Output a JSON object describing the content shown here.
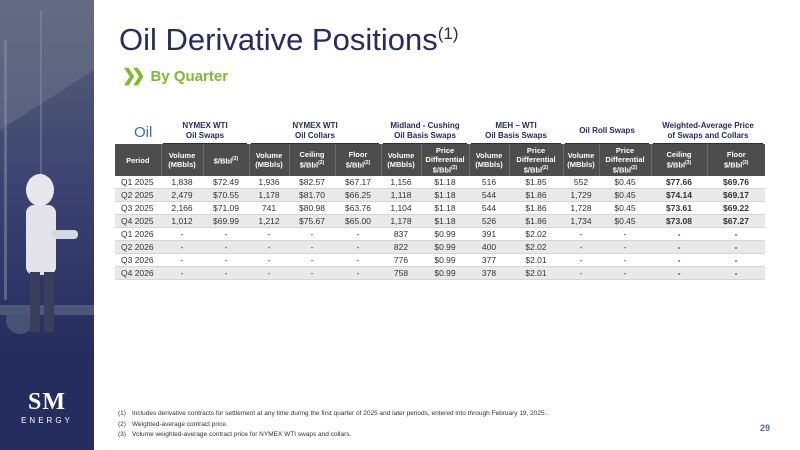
{
  "title": "Oil Derivative Positions",
  "title_sup": "(1)",
  "subtitle": "By Quarter",
  "table_label": "Oil",
  "groups": [
    {
      "line1": "NYMEX WTI",
      "line2": "Oil Swaps"
    },
    {
      "line1": "NYMEX WTI",
      "line2": "Oil Collars"
    },
    {
      "line1": "Midland - Cushing",
      "line2": "Oil Basis Swaps"
    },
    {
      "line1": "MEH – WTI",
      "line2": "Oil Basis Swaps"
    },
    {
      "line1": "Oil Roll Swaps",
      "line2": ""
    },
    {
      "line1": "Weighted-Average Price",
      "line2": "of Swaps and Collars"
    }
  ],
  "columns": [
    {
      "l1": "Period",
      "l2": "",
      "l3": "",
      "sup": ""
    },
    {
      "l1": "Volume",
      "l2": "(MBbls)",
      "l3": "",
      "sup": ""
    },
    {
      "l1": "$/Bbl",
      "l2": "",
      "l3": "",
      "sup": "(2)"
    },
    {
      "l1": "Volume",
      "l2": "(MBbls)",
      "l3": "",
      "sup": ""
    },
    {
      "l1": "Ceiling",
      "l2": "$/Bbl",
      "l3": "",
      "sup": "(2)"
    },
    {
      "l1": "Floor",
      "l2": "$/Bbl",
      "l3": "",
      "sup": "(2)"
    },
    {
      "l1": "Volume",
      "l2": "(MBbls)",
      "l3": "",
      "sup": ""
    },
    {
      "l1": "Price",
      "l2": "Differential",
      "l3": "$/Bbl",
      "sup": "(2)"
    },
    {
      "l1": "Volume",
      "l2": "(MBbls)",
      "l3": "",
      "sup": ""
    },
    {
      "l1": "Price",
      "l2": "Differential",
      "l3": "$/Bbl",
      "sup": "(2)"
    },
    {
      "l1": "Volume",
      "l2": "(MBbls)",
      "l3": "",
      "sup": ""
    },
    {
      "l1": "Price",
      "l2": "Differential",
      "l3": "$/Bbl",
      "sup": "(2)"
    },
    {
      "l1": "Ceiling",
      "l2": "$/Bbl",
      "l3": "",
      "sup": "(3)"
    },
    {
      "l1": "Floor",
      "l2": "$/Bbl",
      "l3": "",
      "sup": "(3)"
    }
  ],
  "rows": [
    [
      "Q1 2025",
      "1,838",
      "$72.49",
      "1,936",
      "$82.57",
      "$67.17",
      "1,156",
      "$1.18",
      "516",
      "$1.85",
      "552",
      "$0.45",
      "$77.66",
      "$69.76"
    ],
    [
      "Q2 2025",
      "2,479",
      "$70.55",
      "1,178",
      "$81.70",
      "$66.25",
      "1,118",
      "$1.18",
      "544",
      "$1.86",
      "1,729",
      "$0.45",
      "$74.14",
      "$69.17"
    ],
    [
      "Q3 2025",
      "2,166",
      "$71.09",
      "741",
      "$80.98",
      "$63.76",
      "1,104",
      "$1.18",
      "544",
      "$1.86",
      "1,728",
      "$0.45",
      "$73.61",
      "$69.22"
    ],
    [
      "Q4 2025",
      "1,012",
      "$69.99",
      "1,212",
      "$75.67",
      "$65.00",
      "1,178",
      "$1.18",
      "526",
      "$1.86",
      "1,734",
      "$0.45",
      "$73.08",
      "$67.27"
    ],
    [
      "Q1 2026",
      "-",
      "-",
      "-",
      "-",
      "-",
      "837",
      "$0.99",
      "391",
      "$2.02",
      "-",
      "-",
      "-",
      "-"
    ],
    [
      "Q2 2026",
      "-",
      "-",
      "-",
      "-",
      "-",
      "822",
      "$0.99",
      "400",
      "$2.02",
      "-",
      "-",
      "-",
      "-"
    ],
    [
      "Q3 2026",
      "-",
      "-",
      "-",
      "-",
      "-",
      "776",
      "$0.99",
      "377",
      "$2.01",
      "-",
      "-",
      "-",
      "-"
    ],
    [
      "Q4 2026",
      "-",
      "-",
      "-",
      "-",
      "-",
      "758",
      "$0.99",
      "378",
      "$2.01",
      "-",
      "-",
      "-",
      "-"
    ]
  ],
  "footnotes": [
    {
      "num": "(1)",
      "text": "Includes derivative contracts for settlement at any time during the first quarter of 2025 and later periods, entered into through February 19, 2025."
    },
    {
      "num": "(2)",
      "text": "Weighted-average contract price."
    },
    {
      "num": "(3)",
      "text": "Volume weighted-average contract price for NYMEX WTI swaps and collars."
    }
  ],
  "logo": {
    "top": "SM",
    "bottom": "ENERGY"
  },
  "page_number": "29",
  "colors": {
    "navy": "#252c5e",
    "green": "#7dba2f",
    "blue": "#3a6fb0",
    "header_gray": "#4d4d4d"
  }
}
